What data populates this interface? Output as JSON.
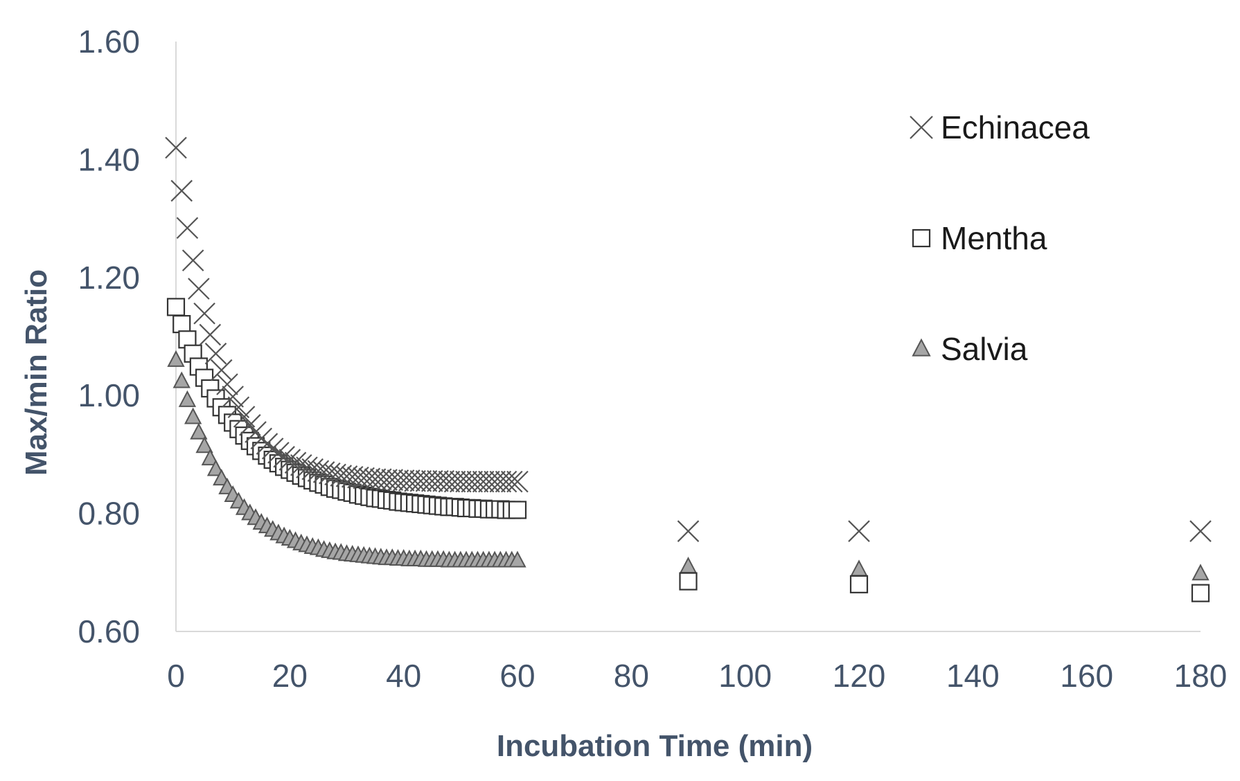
{
  "chart_data": {
    "type": "scatter",
    "title": "",
    "xlabel": "Incubation Time (min)",
    "ylabel": "Max/min Ratio",
    "xlim": [
      0,
      180
    ],
    "ylim": [
      0.6,
      1.6
    ],
    "xticks": [
      0,
      20,
      40,
      60,
      80,
      100,
      120,
      140,
      160,
      180
    ],
    "xtick_labels": [
      "0",
      "20",
      "40",
      "60",
      "80",
      "100",
      "120",
      "140",
      "160",
      "180"
    ],
    "yticks": [
      0.6,
      0.8,
      1.0,
      1.2,
      1.4,
      1.6
    ],
    "ytick_labels": [
      "0.60",
      "0.80",
      "1.00",
      "1.20",
      "1.40",
      "1.60"
    ],
    "gridlines": false,
    "legend_position": "right",
    "series": [
      {
        "name": "Echinacea",
        "marker": "x",
        "color": "#555555",
        "fill": "none",
        "x": [
          0,
          1,
          2,
          3,
          4,
          5,
          6,
          7,
          8,
          9,
          10,
          11,
          12,
          13,
          14,
          15,
          16,
          17,
          18,
          19,
          20,
          21,
          22,
          23,
          24,
          25,
          26,
          27,
          28,
          29,
          30,
          31,
          32,
          33,
          34,
          35,
          36,
          37,
          38,
          39,
          40,
          41,
          42,
          43,
          44,
          45,
          46,
          47,
          48,
          49,
          50,
          51,
          52,
          53,
          54,
          55,
          56,
          57,
          58,
          59,
          60,
          90,
          120,
          180
        ],
        "y": [
          1.42,
          1.347,
          1.284,
          1.229,
          1.181,
          1.139,
          1.103,
          1.071,
          1.043,
          1.019,
          0.998,
          0.98,
          0.964,
          0.95,
          0.938,
          0.927,
          0.918,
          0.91,
          0.903,
          0.896,
          0.891,
          0.886,
          0.882,
          0.878,
          0.875,
          0.872,
          0.87,
          0.868,
          0.866,
          0.864,
          0.863,
          0.862,
          0.861,
          0.86,
          0.859,
          0.858,
          0.858,
          0.857,
          0.857,
          0.856,
          0.856,
          0.856,
          0.855,
          0.855,
          0.855,
          0.855,
          0.855,
          0.855,
          0.854,
          0.854,
          0.854,
          0.854,
          0.854,
          0.854,
          0.854,
          0.854,
          0.854,
          0.854,
          0.854,
          0.854,
          0.854,
          0.77,
          0.77,
          0.77
        ]
      },
      {
        "name": "Mentha",
        "marker": "square",
        "color": "#333333",
        "fill": "#ffffff",
        "x": [
          0,
          1,
          2,
          3,
          4,
          5,
          6,
          7,
          8,
          9,
          10,
          11,
          12,
          13,
          14,
          15,
          16,
          17,
          18,
          19,
          20,
          21,
          22,
          23,
          24,
          25,
          26,
          27,
          28,
          29,
          30,
          31,
          32,
          33,
          34,
          35,
          36,
          37,
          38,
          39,
          40,
          41,
          42,
          43,
          44,
          45,
          46,
          47,
          48,
          49,
          50,
          51,
          52,
          53,
          54,
          55,
          56,
          57,
          58,
          59,
          60,
          90,
          120,
          180
        ],
        "y": [
          1.15,
          1.121,
          1.095,
          1.071,
          1.049,
          1.03,
          1.012,
          0.995,
          0.98,
          0.967,
          0.954,
          0.943,
          0.932,
          0.923,
          0.914,
          0.906,
          0.898,
          0.891,
          0.885,
          0.879,
          0.874,
          0.869,
          0.864,
          0.86,
          0.856,
          0.852,
          0.849,
          0.845,
          0.842,
          0.84,
          0.837,
          0.835,
          0.832,
          0.83,
          0.828,
          0.826,
          0.825,
          0.823,
          0.822,
          0.82,
          0.819,
          0.818,
          0.817,
          0.816,
          0.815,
          0.814,
          0.813,
          0.812,
          0.811,
          0.811,
          0.81,
          0.809,
          0.809,
          0.808,
          0.808,
          0.807,
          0.807,
          0.807,
          0.806,
          0.806,
          0.806,
          0.685,
          0.68,
          0.665
        ]
      },
      {
        "name": "Salvia",
        "marker": "triangle",
        "color": "#555555",
        "fill": "#a6a6a6",
        "x": [
          0,
          1,
          2,
          3,
          4,
          5,
          6,
          7,
          8,
          9,
          10,
          11,
          12,
          13,
          14,
          15,
          16,
          17,
          18,
          19,
          20,
          21,
          22,
          23,
          24,
          25,
          26,
          27,
          28,
          29,
          30,
          31,
          32,
          33,
          34,
          35,
          36,
          37,
          38,
          39,
          40,
          41,
          42,
          43,
          44,
          45,
          46,
          47,
          48,
          49,
          50,
          51,
          52,
          53,
          54,
          55,
          56,
          57,
          58,
          59,
          60,
          90,
          120,
          180
        ],
        "y": [
          1.06,
          1.024,
          0.992,
          0.963,
          0.937,
          0.914,
          0.893,
          0.875,
          0.859,
          0.844,
          0.831,
          0.82,
          0.809,
          0.8,
          0.792,
          0.784,
          0.778,
          0.772,
          0.766,
          0.761,
          0.757,
          0.753,
          0.749,
          0.746,
          0.743,
          0.741,
          0.738,
          0.736,
          0.734,
          0.733,
          0.731,
          0.73,
          0.729,
          0.728,
          0.727,
          0.726,
          0.725,
          0.724,
          0.724,
          0.723,
          0.723,
          0.722,
          0.722,
          0.722,
          0.721,
          0.721,
          0.721,
          0.721,
          0.72,
          0.72,
          0.72,
          0.72,
          0.72,
          0.72,
          0.72,
          0.72,
          0.72,
          0.72,
          0.72,
          0.72,
          0.72,
          0.71,
          0.705,
          0.698
        ]
      }
    ]
  }
}
